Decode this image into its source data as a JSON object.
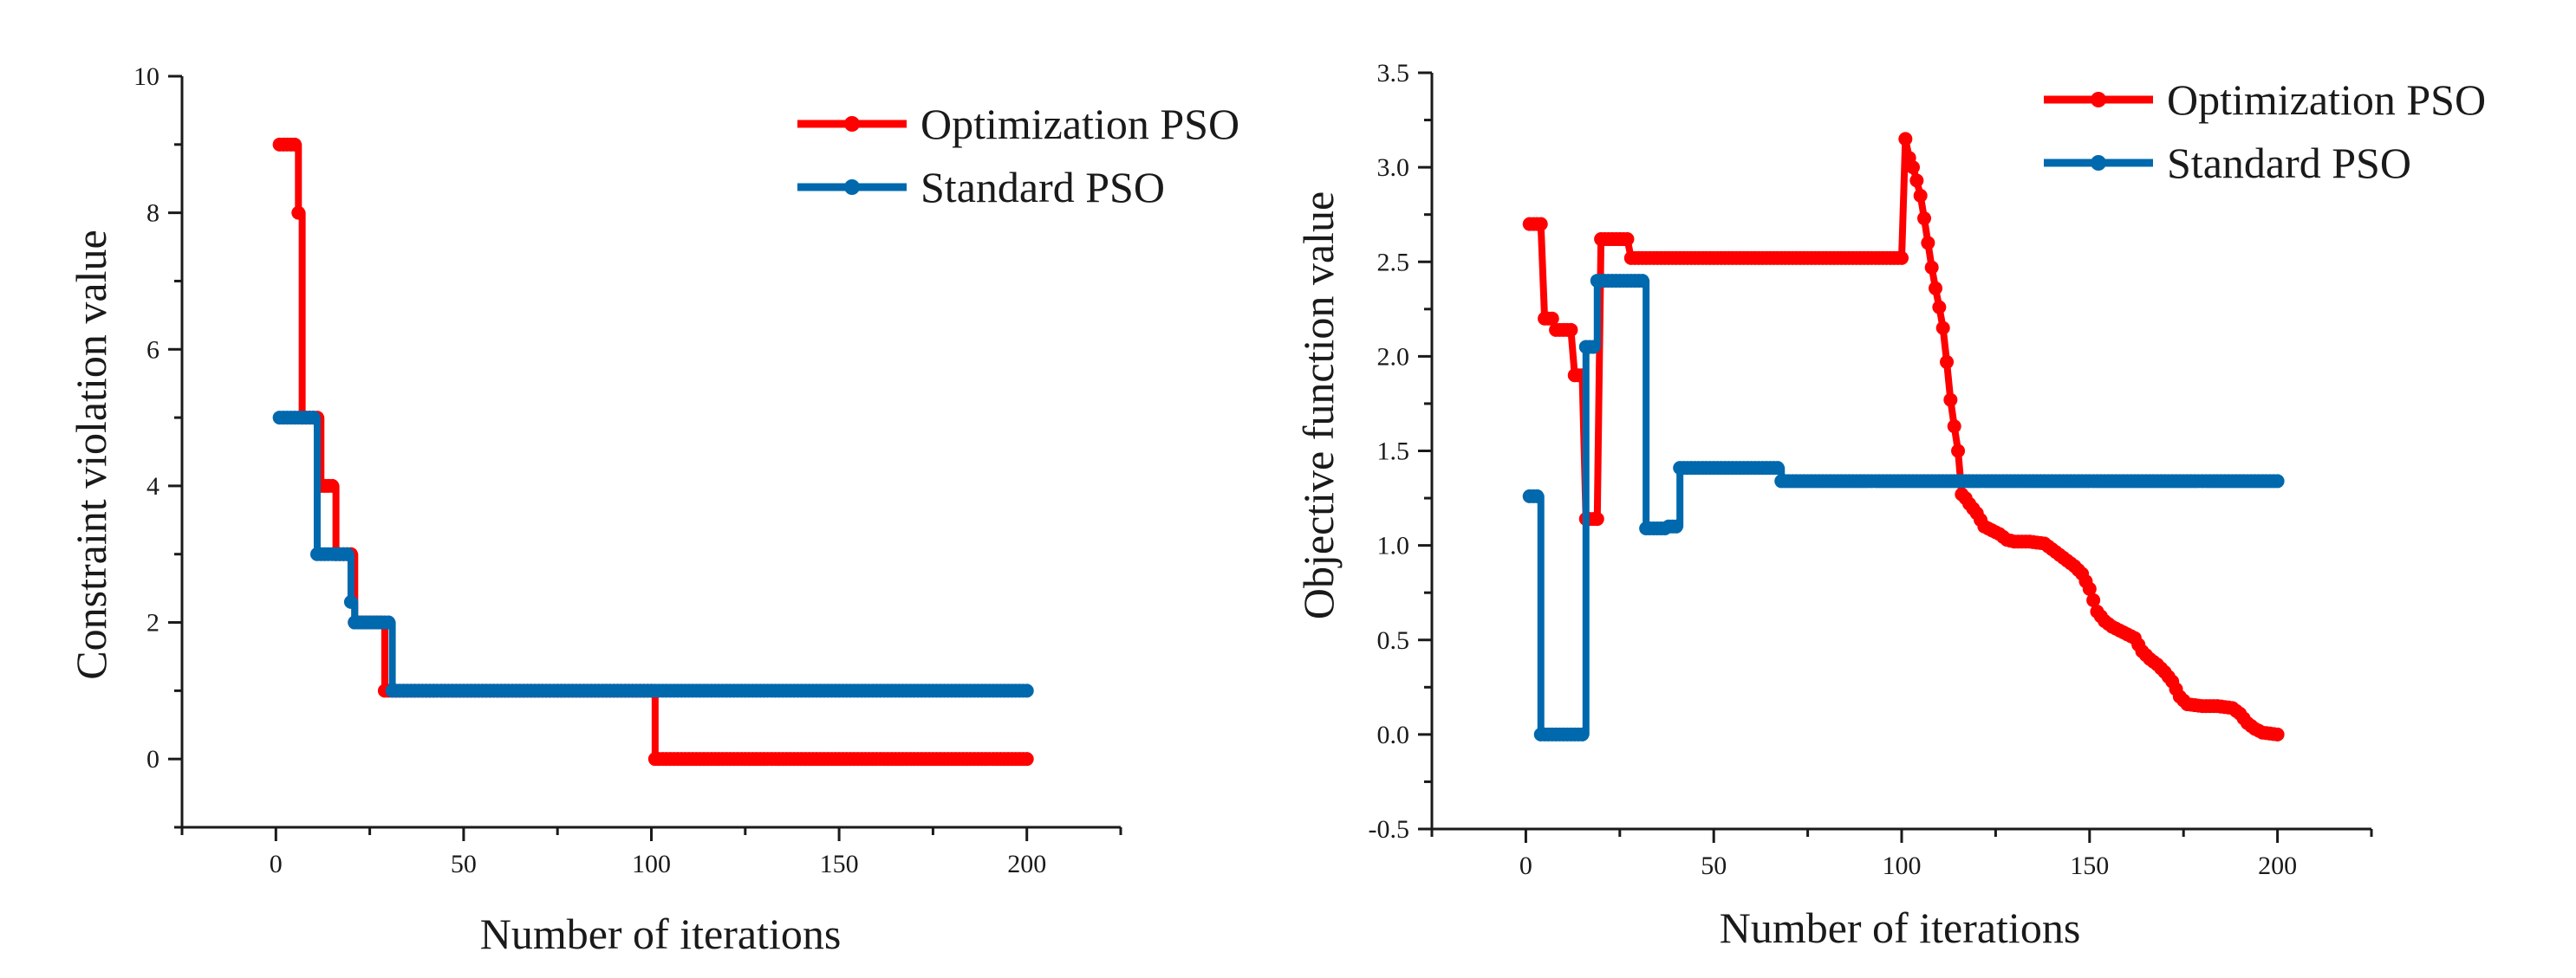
{
  "colors": {
    "optimization": "#ff0000",
    "standard": "#0068ad",
    "axis": "#1a1a1a"
  },
  "chart_data": [
    {
      "type": "line",
      "title": "",
      "xlabel": "Number of iterations",
      "ylabel": "Constraint violation value",
      "xlim": [
        -25,
        225
      ],
      "ylim": [
        -1,
        10
      ],
      "xticks": [
        0,
        50,
        100,
        150,
        200
      ],
      "yticks": [
        0,
        2,
        4,
        6,
        8,
        10
      ],
      "legend_position": "top-right",
      "series": [
        {
          "name": "Optimization PSO",
          "color_key": "optimization",
          "step": true,
          "breakpoints": [
            [
              1,
              9
            ],
            [
              6,
              8
            ],
            [
              7,
              5
            ],
            [
              12,
              4
            ],
            [
              16,
              3
            ],
            [
              21,
              2
            ],
            [
              29,
              1
            ],
            [
              101,
              0
            ],
            [
              200,
              0
            ]
          ]
        },
        {
          "name": "Standard PSO",
          "color_key": "standard",
          "step": true,
          "breakpoints": [
            [
              1,
              5
            ],
            [
              11,
              3
            ],
            [
              20,
              2.3
            ],
            [
              21,
              2
            ],
            [
              31,
              1
            ],
            [
              200,
              1
            ]
          ]
        }
      ]
    },
    {
      "type": "line",
      "title": "",
      "xlabel": "Number of iterations",
      "ylabel": "Objective function value",
      "xlim": [
        -25,
        225
      ],
      "ylim": [
        -0.5,
        3.5
      ],
      "xticks": [
        0,
        50,
        100,
        150,
        200
      ],
      "yticks": [
        -0.5,
        0.0,
        0.5,
        1.0,
        1.5,
        2.0,
        2.5,
        3.0,
        3.5
      ],
      "ytick_labels": [
        "-0.5",
        "0.0",
        "0.5",
        "1.0",
        "1.5",
        "2.0",
        "2.5",
        "3.0",
        "3.5"
      ],
      "legend_position": "top-right",
      "series": [
        {
          "name": "Optimization PSO",
          "color_key": "optimization",
          "step": false,
          "breakpoints": [
            [
              1,
              2.7
            ],
            [
              4,
              2.7
            ],
            [
              5,
              2.2
            ],
            [
              7,
              2.2
            ],
            [
              8,
              2.14
            ],
            [
              12,
              2.14
            ],
            [
              13,
              1.9
            ],
            [
              15,
              1.9
            ],
            [
              16,
              1.14
            ],
            [
              19,
              1.14
            ],
            [
              20,
              2.62
            ],
            [
              27,
              2.62
            ],
            [
              28,
              2.52
            ],
            [
              100,
              2.52
            ],
            [
              101,
              3.15
            ],
            [
              102,
              3.05
            ],
            [
              103,
              3.0
            ],
            [
              104,
              2.93
            ],
            [
              105,
              2.85
            ],
            [
              106,
              2.73
            ],
            [
              107,
              2.6
            ],
            [
              108,
              2.47
            ],
            [
              109,
              2.36
            ],
            [
              110,
              2.26
            ],
            [
              111,
              2.15
            ],
            [
              112,
              1.97
            ],
            [
              113,
              1.77
            ],
            [
              114,
              1.63
            ],
            [
              115,
              1.5
            ],
            [
              116,
              1.27
            ],
            [
              117,
              1.25
            ],
            [
              118,
              1.22
            ],
            [
              120,
              1.17
            ],
            [
              122,
              1.1
            ],
            [
              124,
              1.08
            ],
            [
              126,
              1.06
            ],
            [
              128,
              1.03
            ],
            [
              130,
              1.02
            ],
            [
              134,
              1.02
            ],
            [
              138,
              1.01
            ],
            [
              140,
              0.98
            ],
            [
              142,
              0.95
            ],
            [
              144,
              0.92
            ],
            [
              146,
              0.89
            ],
            [
              148,
              0.85
            ],
            [
              150,
              0.77
            ],
            [
              152,
              0.65
            ],
            [
              154,
              0.6
            ],
            [
              156,
              0.57
            ],
            [
              158,
              0.55
            ],
            [
              160,
              0.53
            ],
            [
              162,
              0.51
            ],
            [
              164,
              0.44
            ],
            [
              166,
              0.4
            ],
            [
              168,
              0.37
            ],
            [
              170,
              0.33
            ],
            [
              172,
              0.28
            ],
            [
              174,
              0.2
            ],
            [
              176,
              0.16
            ],
            [
              180,
              0.15
            ],
            [
              184,
              0.15
            ],
            [
              188,
              0.14
            ],
            [
              190,
              0.11
            ],
            [
              192,
              0.06
            ],
            [
              194,
              0.03
            ],
            [
              196,
              0.01
            ],
            [
              200,
              0.0
            ]
          ]
        },
        {
          "name": "Standard PSO",
          "color_key": "standard",
          "step": true,
          "breakpoints": [
            [
              1,
              1.26
            ],
            [
              4,
              0.0
            ],
            [
              16,
              2.05
            ],
            [
              19,
              2.4
            ],
            [
              32,
              1.09
            ],
            [
              38,
              1.1
            ],
            [
              41,
              1.41
            ],
            [
              68,
              1.34
            ],
            [
              200,
              1.34
            ]
          ]
        }
      ]
    }
  ]
}
